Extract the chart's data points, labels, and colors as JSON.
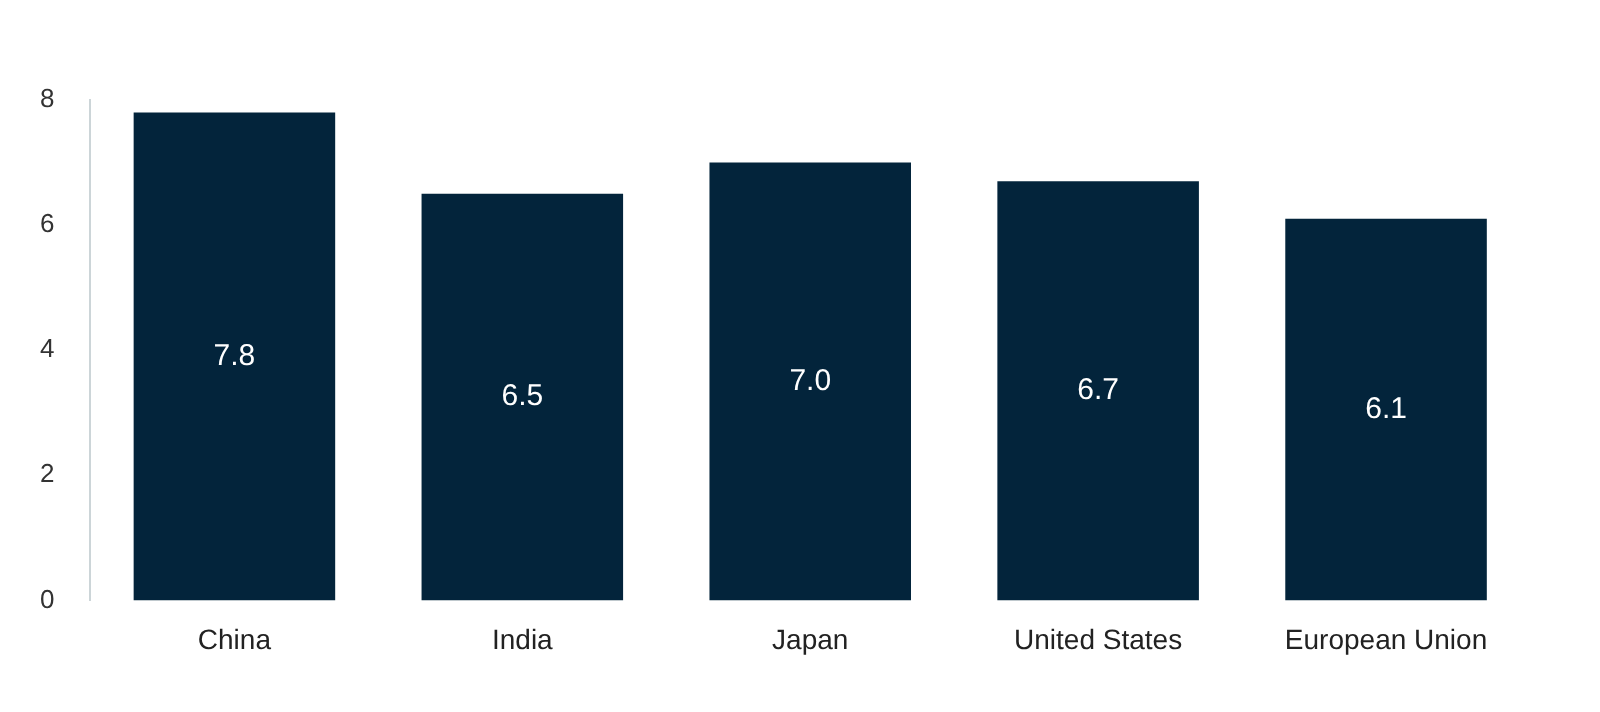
{
  "chart_data": {
    "type": "bar",
    "categories": [
      "China",
      "India",
      "Japan",
      "United States",
      "European Union"
    ],
    "values": [
      7.8,
      6.5,
      7.0,
      6.7,
      6.1
    ],
    "value_labels": [
      "7.8",
      "6.5",
      "7.0",
      "6.7",
      "6.1"
    ],
    "color": "#03243b",
    "ylim": [
      0,
      8
    ],
    "yticks": [
      0,
      2,
      4,
      6,
      8
    ],
    "grid": false,
    "legend": false,
    "data_labels": true
  }
}
